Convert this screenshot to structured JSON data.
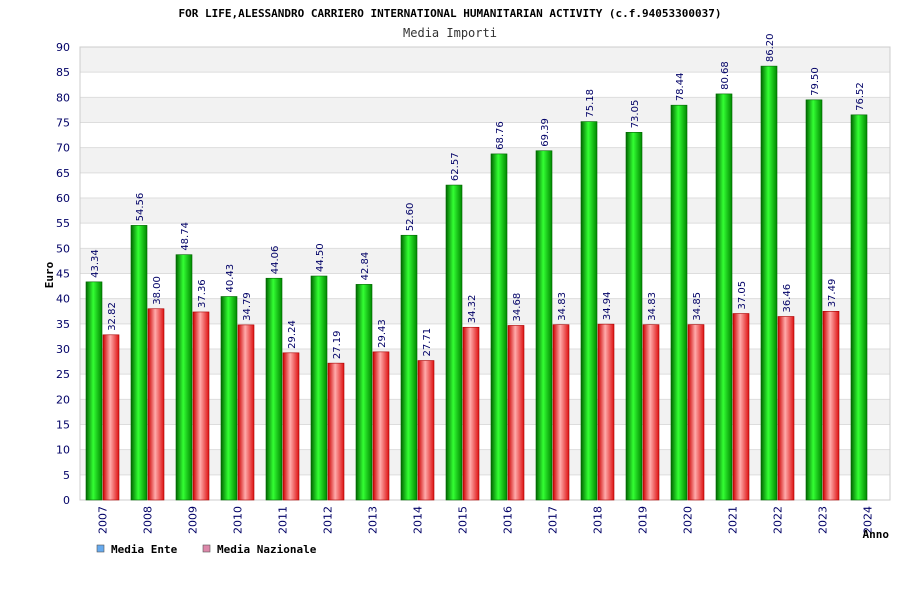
{
  "chart_data": {
    "type": "bar",
    "title": "FOR LIFE,ALESSANDRO CARRIERO INTERNATIONAL HUMANITARIAN ACTIVITY (c.f.94053300037)",
    "subtitle": "Media Importi",
    "xlabel": "Anno",
    "ylabel": "Euro",
    "ylim": [
      0,
      90
    ],
    "yticks": [
      0,
      5,
      10,
      15,
      20,
      25,
      30,
      35,
      40,
      45,
      50,
      55,
      60,
      65,
      70,
      75,
      80,
      85,
      90
    ],
    "grid": true,
    "legend_position": "bottom-left",
    "categories": [
      "2007",
      "2008",
      "2009",
      "2010",
      "2011",
      "2012",
      "2013",
      "2014",
      "2015",
      "2016",
      "2017",
      "2018",
      "2019",
      "2020",
      "2021",
      "2022",
      "2023",
      "2024"
    ],
    "series": [
      {
        "name": "Media Ente",
        "color": "#00cc00",
        "legend_color": "#66aaee",
        "values": [
          43.34,
          54.56,
          48.74,
          40.43,
          44.06,
          44.5,
          42.84,
          52.6,
          62.57,
          68.76,
          69.39,
          75.18,
          73.05,
          78.44,
          80.68,
          86.2,
          79.5,
          76.52
        ],
        "labels": [
          "43.34",
          "54.56",
          "48.74",
          "40.43",
          "44.06",
          "44.50",
          "42.84",
          "52.60",
          "62.57",
          "68.76",
          "69.39",
          "75.18",
          "73.05",
          "78.44",
          "80.68",
          "86.20",
          "79.50",
          "76.52"
        ]
      },
      {
        "name": "Media Nazionale",
        "color": "#ee2222",
        "legend_color": "#dd88aa",
        "values": [
          32.82,
          38.0,
          37.36,
          34.79,
          29.24,
          27.19,
          29.43,
          27.71,
          34.32,
          34.68,
          34.83,
          34.94,
          34.83,
          34.85,
          37.05,
          36.46,
          37.49,
          null
        ],
        "labels": [
          "32.82",
          "38.00",
          "37.36",
          "34.79",
          "29.24",
          "27.19",
          "29.43",
          "27.71",
          "34.32",
          "34.68",
          "34.83",
          "34.94",
          "34.83",
          "34.85",
          "37.05",
          "36.46",
          "37.49",
          ""
        ]
      }
    ]
  }
}
